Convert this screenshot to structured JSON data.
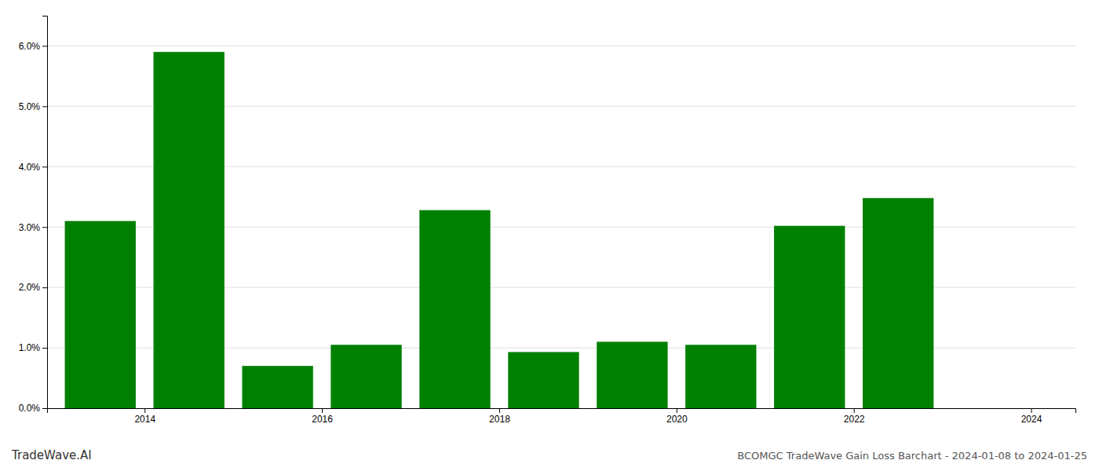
{
  "chart_data": {
    "type": "bar",
    "title": "BCOMGC TradeWave Gain Loss Barchart - 2024-01-08 to 2024-01-25",
    "annotations": [
      "TradeWave.AI"
    ],
    "x": [
      2014,
      2015,
      2016,
      2017,
      2018,
      2019,
      2020,
      2021,
      2022,
      2023,
      2024
    ],
    "values": [
      0.031,
      0.059,
      0.007,
      0.0105,
      0.0328,
      0.0093,
      0.011,
      0.0105,
      0.0302,
      0.0348,
      0.0
    ],
    "color": "#008000",
    "xlim": [
      2013.4,
      2025.0
    ],
    "xticks": [
      {
        "value": 2014.5,
        "label": "2014"
      },
      {
        "value": 2016.5,
        "label": "2016"
      },
      {
        "value": 2018.5,
        "label": "2018"
      },
      {
        "value": 2020.5,
        "label": "2020"
      },
      {
        "value": 2022.5,
        "label": "2022"
      },
      {
        "value": 2024.5,
        "label": "2024"
      }
    ],
    "ylim": [
      0,
      0.065
    ],
    "yticks": [
      {
        "value": 0.0,
        "label": "0.0%"
      },
      {
        "value": 0.01,
        "label": "1.0%"
      },
      {
        "value": 0.02,
        "label": "2.0%"
      },
      {
        "value": 0.03,
        "label": "3.0%"
      },
      {
        "value": 0.04,
        "label": "4.0%"
      },
      {
        "value": 0.05,
        "label": "5.0%"
      },
      {
        "value": 0.06,
        "label": "6.0%"
      }
    ],
    "grid": true
  }
}
